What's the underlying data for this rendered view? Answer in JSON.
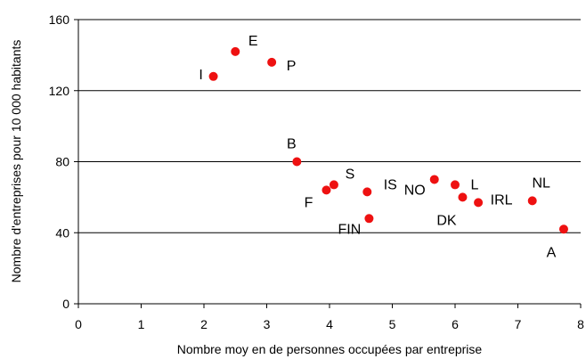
{
  "chart_data": {
    "type": "scatter",
    "title": "",
    "xlabel": "Nombre moy en de personnes occupées par entreprise",
    "ylabel": "Nombre d'entreprises pour 10 000 habitants",
    "xlim": [
      0,
      8
    ],
    "ylim": [
      0,
      160
    ],
    "xticks": [
      "0",
      "1",
      "2",
      "3",
      "4",
      "5",
      "6",
      "7",
      "8"
    ],
    "yticks": [
      "0",
      "40",
      "80",
      "120",
      "160"
    ],
    "grid": "horizontal",
    "marker_color": "#ee1111",
    "points": [
      {
        "label": "I",
        "x": 2.15,
        "y": 128
      },
      {
        "label": "E",
        "x": 2.5,
        "y": 142
      },
      {
        "label": "P",
        "x": 3.08,
        "y": 136
      },
      {
        "label": "B",
        "x": 3.48,
        "y": 80
      },
      {
        "label": "F",
        "x": 3.95,
        "y": 64
      },
      {
        "label": "S",
        "x": 4.07,
        "y": 67
      },
      {
        "label": "IS",
        "x": 4.6,
        "y": 63
      },
      {
        "label": "FIN",
        "x": 4.63,
        "y": 48
      },
      {
        "label": "NO",
        "x": 5.67,
        "y": 70
      },
      {
        "label": "L",
        "x": 6.0,
        "y": 67
      },
      {
        "label": "DK",
        "x": 6.12,
        "y": 60
      },
      {
        "label": "IRL",
        "x": 6.37,
        "y": 57
      },
      {
        "label": "NL",
        "x": 7.23,
        "y": 58
      },
      {
        "label": "A",
        "x": 7.73,
        "y": 42
      }
    ]
  }
}
